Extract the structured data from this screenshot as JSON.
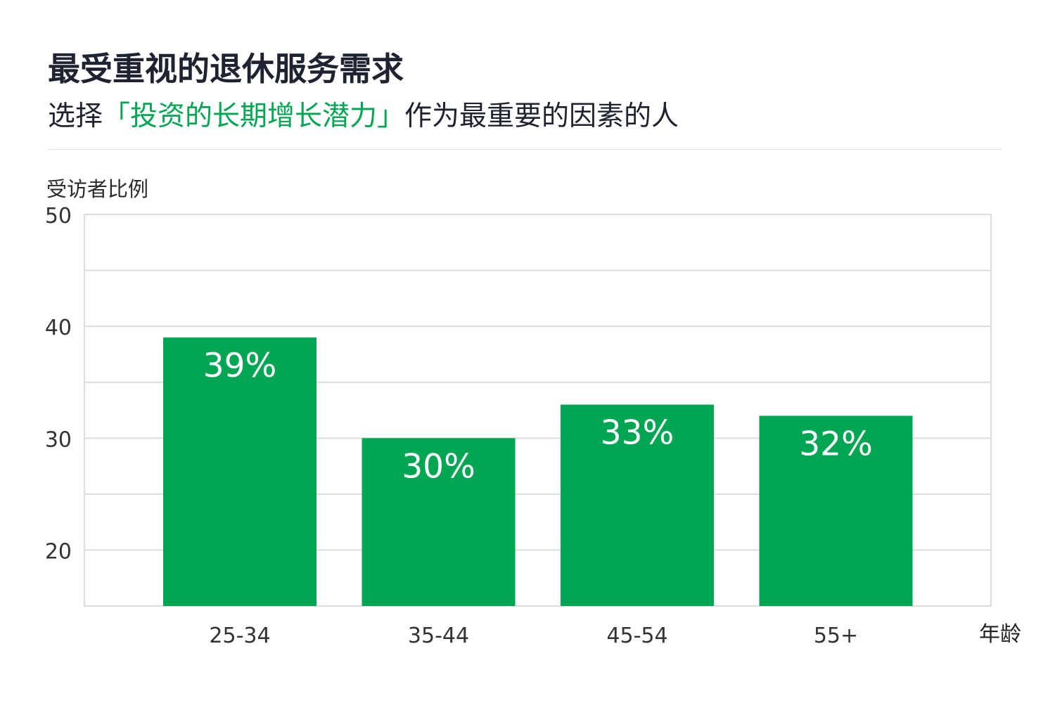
{
  "header": {
    "title": "最受重视的退休服务需求",
    "subtitle_prefix": "选择",
    "subtitle_highlight": "「投资的长期增长潜力」",
    "subtitle_suffix": "作为最重要的因素的人"
  },
  "colors": {
    "bar": "#00a651",
    "highlight": "#00a651",
    "grid": "#dcdcdc"
  },
  "chart_data": {
    "type": "bar",
    "categories": [
      "25-34",
      "35-44",
      "45-54",
      "55+"
    ],
    "values": [
      39,
      30,
      33,
      32
    ],
    "value_labels": [
      "39%",
      "30%",
      "33%",
      "32%"
    ],
    "ylabel": "受访者比例",
    "xlabel": "年龄",
    "ylim": [
      15,
      50
    ],
    "yticks": [
      20,
      30,
      40,
      50
    ],
    "grid": true,
    "gridlines": [
      20,
      25,
      30,
      35,
      40,
      45,
      50
    ]
  }
}
